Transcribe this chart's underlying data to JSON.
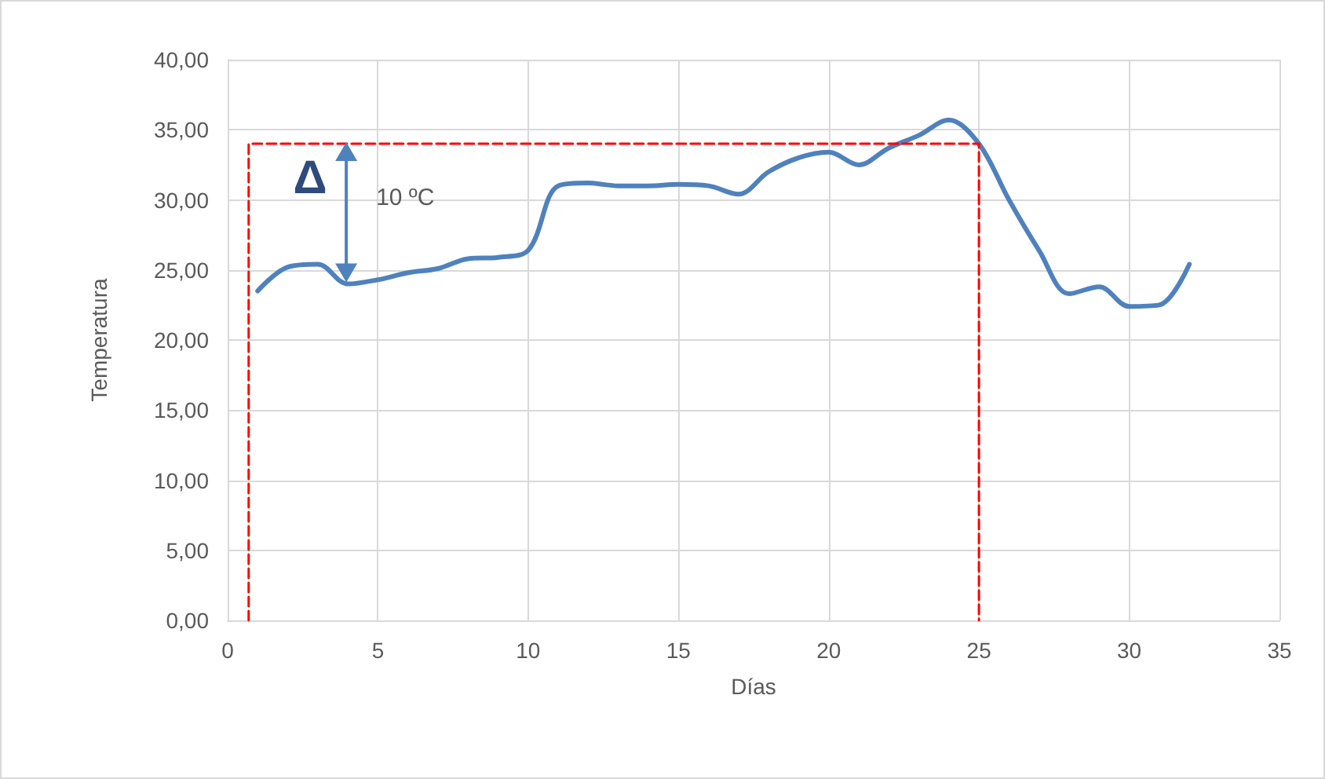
{
  "chart_data": {
    "type": "line",
    "xlabel": "Días",
    "ylabel": "Temperatura",
    "xlim": [
      0,
      35
    ],
    "xticks": [
      0,
      5,
      10,
      15,
      20,
      25,
      30,
      35
    ],
    "ylim": [
      0,
      40
    ],
    "yticks": [
      {
        "value": 0,
        "label": "0,00"
      },
      {
        "value": 5,
        "label": "5,00"
      },
      {
        "value": 10,
        "label": "10,00"
      },
      {
        "value": 15,
        "label": "15,00"
      },
      {
        "value": 20,
        "label": "20,00"
      },
      {
        "value": 25,
        "label": "25,00"
      },
      {
        "value": 30,
        "label": "30,00"
      },
      {
        "value": 35,
        "label": "35,00"
      },
      {
        "value": 40,
        "label": "40,00"
      }
    ],
    "grid": true,
    "marker": "none",
    "series": [
      {
        "color": "#4f81bd",
        "x": [
          1,
          2,
          3,
          4,
          5,
          6,
          7,
          8,
          9,
          10,
          11,
          12,
          13,
          14,
          15,
          16,
          17,
          18,
          19,
          20,
          21,
          22,
          23,
          24,
          25,
          26,
          27,
          28,
          29,
          30,
          31,
          32
        ],
        "values": [
          23.5,
          25.2,
          25.4,
          24.0,
          24.3,
          24.8,
          25.1,
          25.8,
          25.9,
          26.4,
          31.0,
          31.2,
          31.0,
          31.0,
          31.1,
          31.0,
          30.4,
          32.0,
          33.0,
          33.4,
          32.5,
          33.7,
          34.6,
          35.7,
          34.0,
          30.0,
          26.4,
          23.3,
          23.8,
          22.4,
          22.5,
          25.4
        ]
      },
      {
        "color": "#ff0000",
        "line_style": "dashed",
        "x": [
          0.7,
          0.7,
          25,
          25
        ],
        "values": [
          0,
          34,
          34,
          0
        ]
      }
    ],
    "annotations": [
      "10 ºC",
      "Δ"
    ]
  }
}
